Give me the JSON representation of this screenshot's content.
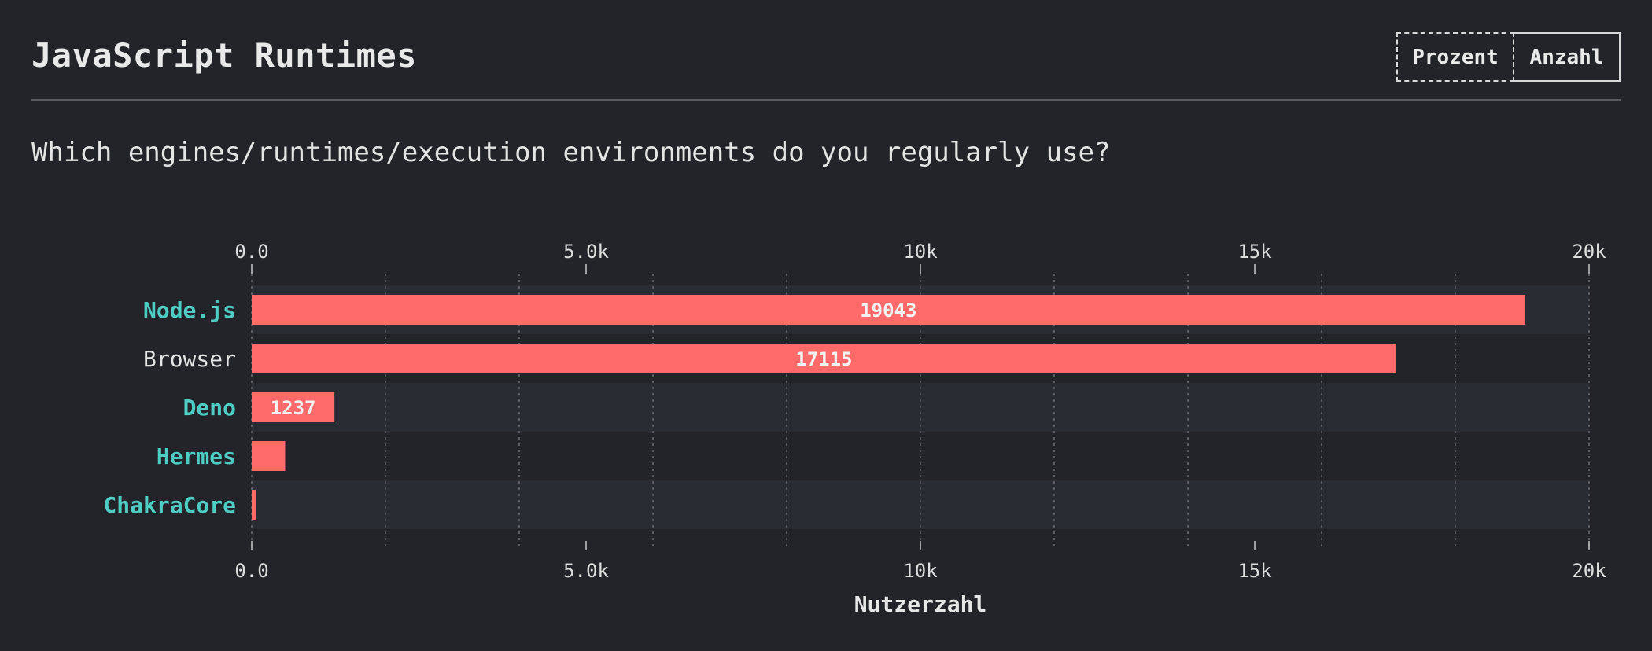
{
  "header": {
    "title": "JavaScript Runtimes",
    "toggle": {
      "percent_label": "Prozent",
      "count_label": "Anzahl",
      "active": "Prozent"
    }
  },
  "question": "Which engines/runtimes/execution environments do you regularly use?",
  "colors": {
    "background": "#232429",
    "bar": "#fe6a6a",
    "highlight_label": "#4ecdc4",
    "plain_label": "#e6e6e6",
    "stripe": "#2a2c33"
  },
  "chart_data": {
    "type": "bar",
    "orientation": "horizontal",
    "categories": [
      "Node.js",
      "Browser",
      "Deno",
      "Hermes",
      "ChakraCore"
    ],
    "highlighted": [
      true,
      false,
      true,
      true,
      true
    ],
    "values": [
      19043,
      17115,
      1237,
      500,
      60
    ],
    "data_labels": [
      "19043",
      "17115",
      "1237",
      "",
      ""
    ],
    "xlim": [
      0,
      20000
    ],
    "xticks": [
      0,
      5000,
      10000,
      15000,
      20000
    ],
    "xtick_labels": [
      "0.0",
      "5.0k",
      "10k",
      "15k",
      "20k"
    ],
    "minor_grid_step": 2000,
    "xlabel": "Nutzerzahl",
    "ylabel": "",
    "grid": true,
    "legend": "none"
  }
}
